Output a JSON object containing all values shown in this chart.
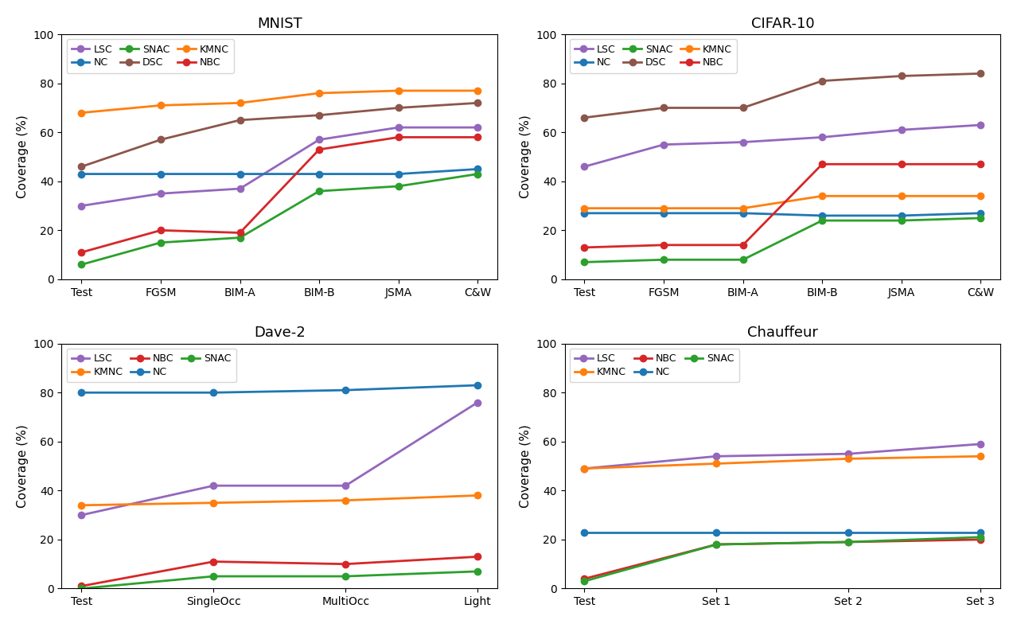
{
  "subplots": [
    {
      "title": "MNIST",
      "xlabel_ticks": [
        "Test",
        "FGSM",
        "BIM-A",
        "BIM-B",
        "JSMA",
        "C&W"
      ],
      "ylim": [
        0,
        100
      ],
      "legend_ncol": 3,
      "legend_entries": [
        "LSC",
        "NC",
        "SNAC",
        "DSC",
        "KMNC",
        "NBC"
      ],
      "series": {
        "LSC": {
          "color": "#9467bd",
          "values": [
            30,
            35,
            37,
            57,
            62,
            62
          ]
        },
        "NC": {
          "color": "#1f77b4",
          "values": [
            43,
            43,
            43,
            43,
            43,
            45
          ]
        },
        "SNAC": {
          "color": "#2ca02c",
          "values": [
            6,
            15,
            17,
            36,
            38,
            43
          ]
        },
        "DSC": {
          "color": "#8c564b",
          "values": [
            46,
            57,
            65,
            67,
            70,
            72
          ]
        },
        "KMNC": {
          "color": "#ff7f0e",
          "values": [
            68,
            71,
            72,
            76,
            77,
            77
          ]
        },
        "NBC": {
          "color": "#d62728",
          "values": [
            11,
            20,
            19,
            53,
            58,
            58
          ]
        }
      }
    },
    {
      "title": "CIFAR-10",
      "xlabel_ticks": [
        "Test",
        "FGSM",
        "BIM-A",
        "BIM-B",
        "JSMA",
        "C&W"
      ],
      "ylim": [
        0,
        100
      ],
      "legend_ncol": 3,
      "legend_entries": [
        "LSC",
        "NC",
        "SNAC",
        "DSC",
        "KMNC",
        "NBC"
      ],
      "series": {
        "LSC": {
          "color": "#9467bd",
          "values": [
            46,
            55,
            56,
            58,
            61,
            63
          ]
        },
        "NC": {
          "color": "#1f77b4",
          "values": [
            27,
            27,
            27,
            26,
            26,
            27
          ]
        },
        "SNAC": {
          "color": "#2ca02c",
          "values": [
            7,
            8,
            8,
            24,
            24,
            25
          ]
        },
        "DSC": {
          "color": "#8c564b",
          "values": [
            66,
            70,
            70,
            81,
            83,
            84
          ]
        },
        "KMNC": {
          "color": "#ff7f0e",
          "values": [
            29,
            29,
            29,
            34,
            34,
            34
          ]
        },
        "NBC": {
          "color": "#d62728",
          "values": [
            13,
            14,
            14,
            47,
            47,
            47
          ]
        }
      }
    },
    {
      "title": "Dave-2",
      "xlabel_ticks": [
        "Test",
        "SingleOcc",
        "MultiOcc",
        "Light"
      ],
      "ylim": [
        0,
        100
      ],
      "legend_ncol": 3,
      "legend_entries": [
        "LSC",
        "KMNC",
        "NBC",
        "NC",
        "SNAC"
      ],
      "series": {
        "LSC": {
          "color": "#9467bd",
          "values": [
            30,
            42,
            42,
            76
          ]
        },
        "KMNC": {
          "color": "#ff7f0e",
          "values": [
            34,
            35,
            36,
            38
          ]
        },
        "NBC": {
          "color": "#d62728",
          "values": [
            1,
            11,
            10,
            13
          ]
        },
        "NC": {
          "color": "#1f77b4",
          "values": [
            80,
            80,
            81,
            83
          ]
        },
        "SNAC": {
          "color": "#2ca02c",
          "values": [
            0,
            5,
            5,
            7
          ]
        }
      }
    },
    {
      "title": "Chauffeur",
      "xlabel_ticks": [
        "Test",
        "Set 1",
        "Set 2",
        "Set 3"
      ],
      "ylim": [
        0,
        100
      ],
      "legend_ncol": 3,
      "legend_entries": [
        "LSC",
        "KMNC",
        "NBC",
        "NC",
        "SNAC"
      ],
      "series": {
        "LSC": {
          "color": "#9467bd",
          "values": [
            49,
            54,
            55,
            59
          ]
        },
        "KMNC": {
          "color": "#ff7f0e",
          "values": [
            49,
            51,
            53,
            54
          ]
        },
        "NBC": {
          "color": "#d62728",
          "values": [
            4,
            18,
            19,
            20
          ]
        },
        "NC": {
          "color": "#1f77b4",
          "values": [
            23,
            23,
            23,
            23
          ]
        },
        "SNAC": {
          "color": "#2ca02c",
          "values": [
            3,
            18,
            19,
            21
          ]
        }
      }
    }
  ],
  "ylabel": "Coverage (%)",
  "marker": "o",
  "linewidth": 2,
  "markersize": 6,
  "figsize": [
    12.78,
    7.84
  ],
  "dpi": 100
}
